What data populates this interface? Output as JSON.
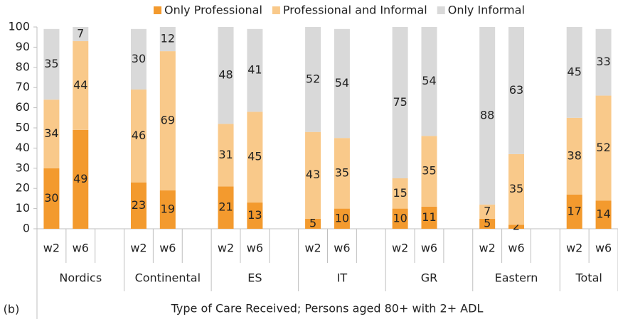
{
  "chart_data": {
    "type": "stacked_bar",
    "categories": [
      "w2",
      "w6",
      null,
      "w2",
      "w6",
      null,
      "w2",
      "w6",
      null,
      "w2",
      "w6",
      null,
      "w2",
      "w6",
      null,
      "w2",
      "w6",
      null,
      "w2",
      "w6"
    ],
    "groups": [
      "Nordics",
      "Continental",
      "ES",
      "IT",
      "GR",
      "Eastern",
      "Total"
    ],
    "series": [
      {
        "name": "Only Professional",
        "color": "#f39a2e",
        "values": [
          30,
          49,
          null,
          23,
          19,
          null,
          21,
          13,
          null,
          5,
          10,
          null,
          10,
          11,
          null,
          5,
          2,
          null,
          17,
          14
        ]
      },
      {
        "name": "Professional and Informal",
        "color": "#f9c98a",
        "values": [
          34,
          44,
          null,
          46,
          69,
          null,
          31,
          45,
          null,
          43,
          35,
          null,
          15,
          35,
          null,
          7,
          35,
          null,
          38,
          52
        ]
      },
      {
        "name": "Only Informal",
        "color": "#d9d9d9",
        "values": [
          35,
          7,
          null,
          30,
          12,
          null,
          48,
          41,
          null,
          52,
          54,
          null,
          75,
          54,
          null,
          88,
          63,
          null,
          45,
          33
        ]
      }
    ],
    "ylim": [
      0,
      100
    ],
    "yticks": [
      0,
      10,
      20,
      30,
      40,
      50,
      60,
      70,
      80,
      90,
      100
    ],
    "xlabel": "Type of Care Received; Persons aged 80+ with 2+ ADL",
    "annotation": "(b)",
    "legend": "top",
    "grid": false
  }
}
